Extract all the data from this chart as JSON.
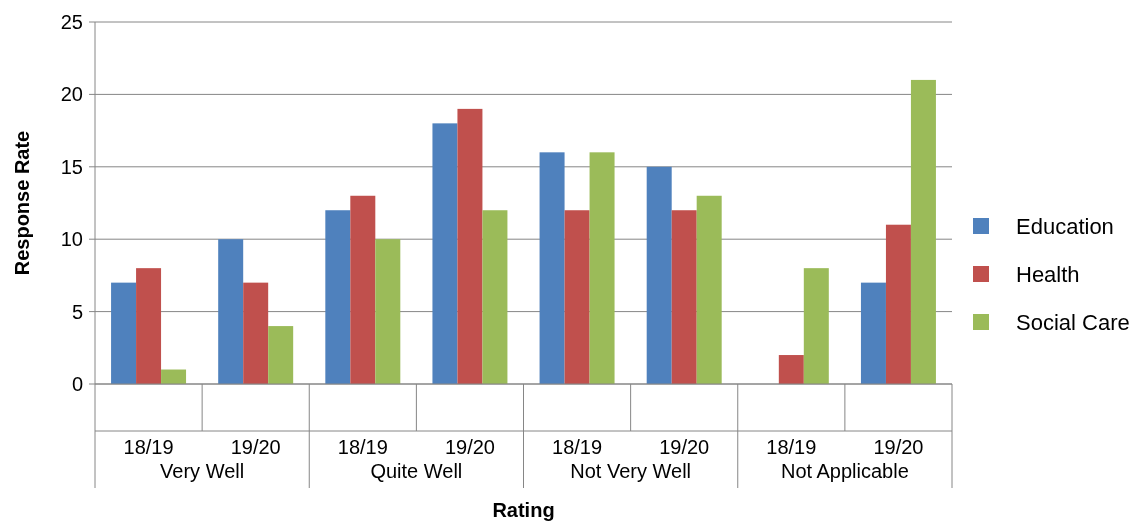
{
  "chart_data": {
    "type": "bar",
    "xlabel": "Rating",
    "ylabel": "Response Rate",
    "categories": [
      "18/19",
      "19/20",
      "18/19",
      "19/20",
      "18/19",
      "19/20",
      "18/19",
      "19/20"
    ],
    "annotations": [
      "Very Well",
      "Quite Well",
      "Not Very Well",
      "Not Applicable"
    ],
    "series": [
      {
        "name": "Education",
        "color": "#4f81bd",
        "values": [
          7,
          10,
          12,
          18,
          16,
          15,
          0,
          7
        ]
      },
      {
        "name": "Health",
        "color": "#c0504d",
        "values": [
          8,
          7,
          13,
          19,
          12,
          12,
          2,
          11
        ]
      },
      {
        "name": "Social Care",
        "color": "#9bbb59",
        "values": [
          1,
          4,
          10,
          12,
          16,
          13,
          8,
          21
        ]
      }
    ],
    "ylim": [
      0,
      25
    ],
    "yticks": [
      0,
      5,
      10,
      15,
      20,
      25
    ],
    "grid": "y",
    "legend": "right"
  }
}
